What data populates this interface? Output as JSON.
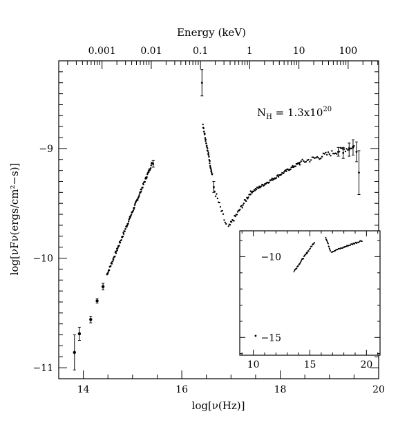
{
  "chart_data": [
    {
      "type": "scatter",
      "panel": "main",
      "top_axis_label": "Energy (keV)",
      "top_axis_ticks": [
        {
          "label": "0.001",
          "nu": 14.38
        },
        {
          "label": "0.01",
          "nu": 15.38
        },
        {
          "label": "0.1",
          "nu": 16.38
        },
        {
          "label": "1",
          "nu": 17.38
        },
        {
          "label": "10",
          "nu": 18.38
        },
        {
          "label": "100",
          "nu": 19.38
        }
      ],
      "xlabel": "log[ν(Hz)]",
      "ylabel": "log[νFν(ergs/cm²−s)]",
      "xlim": [
        13.5,
        20
      ],
      "ylim": [
        -11.1,
        -8.2
      ],
      "x_tick_labels": [
        "14",
        "16",
        "18",
        "20"
      ],
      "y_tick_labels": [
        "−9",
        "−10",
        "−11"
      ],
      "annotation": {
        "prefix": "N",
        "sub": "H",
        "mid": " = 1.3x10",
        "sup": "20"
      },
      "series": [
        {
          "marker": "error-bar",
          "points": [
            {
              "x": 13.82,
              "y": -10.86,
              "err": 0.16
            },
            {
              "x": 13.92,
              "y": -10.69,
              "err": 0.06
            },
            {
              "x": 14.15,
              "y": -10.56,
              "err": 0.03
            },
            {
              "x": 14.28,
              "y": -10.39,
              "err": 0.02
            },
            {
              "x": 14.4,
              "y": -10.26,
              "err": 0.03
            }
          ]
        },
        {
          "marker": "dot",
          "segments": [
            {
              "x0": 14.48,
              "y0": -10.15,
              "x1": 15.4,
              "y1": -9.13,
              "n": 120,
              "jitter": 0.015
            },
            {
              "x0": 16.43,
              "y0": -8.78,
              "x1": 16.62,
              "y1": -9.25,
              "n": 40,
              "jitter": 0.02
            },
            {
              "x0": 16.65,
              "y0": -9.36,
              "x1": 16.9,
              "y1": -9.7,
              "n": 14,
              "jitter": 0.03
            },
            {
              "x0": 16.95,
              "y0": -9.72,
              "x1": 17.4,
              "y1": -9.4,
              "n": 30,
              "jitter": 0.02
            },
            {
              "x0": 17.4,
              "y0": -9.4,
              "x1": 18.4,
              "y1": -9.13,
              "n": 70,
              "jitter": 0.012
            },
            {
              "x0": 18.4,
              "y0": -9.13,
              "x1": 19.5,
              "y1": -8.98,
              "n": 45,
              "jitter": 0.025
            }
          ],
          "error_points": [
            {
              "x": 15.42,
              "y": -9.14,
              "err": 0.03
            },
            {
              "x": 16.41,
              "y": -8.4,
              "err": 0.12
            },
            {
              "x": 16.65,
              "y": -9.35,
              "err": 0.05
            },
            {
              "x": 19.18,
              "y": -9.03,
              "err": 0.04
            },
            {
              "x": 19.28,
              "y": -9.04,
              "err": 0.05
            },
            {
              "x": 19.4,
              "y": -9.01,
              "err": 0.06
            },
            {
              "x": 19.48,
              "y": -8.99,
              "err": 0.07
            },
            {
              "x": 19.55,
              "y": -9.03,
              "err": 0.09
            },
            {
              "x": 19.6,
              "y": -9.22,
              "err": 0.2
            }
          ]
        }
      ]
    },
    {
      "type": "scatter",
      "panel": "inset",
      "xlim": [
        8.8,
        21.2
      ],
      "ylim": [
        -16.1,
        -8.4
      ],
      "x_tick_labels": [
        "10",
        "15",
        "20"
      ],
      "y_tick_labels": [
        "−10",
        "−15"
      ],
      "series": [
        {
          "marker": "dot",
          "points": [
            {
              "x": 10.2,
              "y": -14.9
            }
          ],
          "segments": [
            {
              "x0": 13.6,
              "y0": -10.9,
              "x1": 15.4,
              "y1": -9.1,
              "n": 40,
              "jitter": 0.05
            },
            {
              "x0": 16.4,
              "y0": -8.8,
              "x1": 16.8,
              "y1": -9.6,
              "n": 12,
              "jitter": 0.05
            },
            {
              "x0": 16.9,
              "y0": -9.7,
              "x1": 19.6,
              "y1": -9.0,
              "n": 40,
              "jitter": 0.05
            }
          ]
        }
      ]
    }
  ]
}
